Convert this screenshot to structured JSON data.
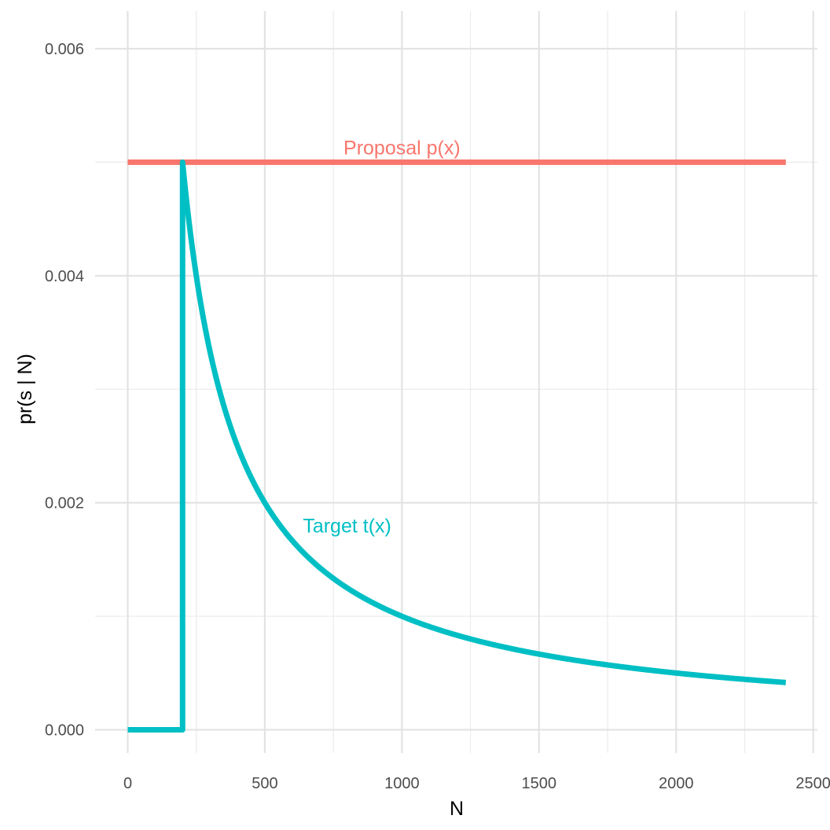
{
  "chart_data": {
    "type": "line",
    "xlabel": "N",
    "ylabel": "pr(s | N)",
    "xlim": [
      0,
      2500
    ],
    "ylim": [
      0,
      0.006
    ],
    "x_ticks": [
      0,
      500,
      1000,
      1500,
      2000,
      2500
    ],
    "x_tick_labels": [
      "0",
      "500",
      "1000",
      "1500",
      "2000",
      "2500"
    ],
    "y_ticks": [
      0,
      0.002,
      0.004,
      0.006
    ],
    "y_tick_labels": [
      "0.000",
      "0.002",
      "0.004",
      "0.006"
    ],
    "grid": true,
    "legend": "none",
    "series": [
      {
        "name": "Proposal p(x)",
        "color": "#F8766D",
        "points": [
          [
            0,
            0.005
          ],
          [
            2400,
            0.005
          ]
        ]
      },
      {
        "name": "Target t(x)",
        "color": "#00BFC4",
        "points": [
          [
            0,
            0
          ],
          [
            200,
            0
          ],
          [
            200,
            0.005
          ],
          [
            250,
            0.004
          ],
          [
            300,
            0.00333
          ],
          [
            350,
            0.00286
          ],
          [
            400,
            0.0025
          ],
          [
            500,
            0.002
          ],
          [
            600,
            0.00167
          ],
          [
            700,
            0.00143
          ],
          [
            800,
            0.00125
          ],
          [
            1000,
            0.001
          ],
          [
            1200,
            0.00083
          ],
          [
            1400,
            0.00071
          ],
          [
            1600,
            0.000625
          ],
          [
            1800,
            0.00056
          ],
          [
            2000,
            0.0005
          ],
          [
            2200,
            0.00045
          ],
          [
            2400,
            0.00042
          ]
        ]
      }
    ],
    "annotations": [
      {
        "text": "Proposal p(x)",
        "x": 1000,
        "y": 0.00513,
        "color": "#F8766D"
      },
      {
        "text": "Target t(x)",
        "x": 800,
        "y": 0.0018,
        "color": "#00BFC4"
      }
    ]
  }
}
